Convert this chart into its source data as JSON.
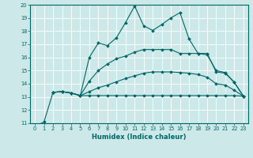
{
  "xlabel": "Humidex (Indice chaleur)",
  "xlim": [
    -0.5,
    23.5
  ],
  "ylim": [
    11,
    20
  ],
  "xticks": [
    0,
    1,
    2,
    3,
    4,
    5,
    6,
    7,
    8,
    9,
    10,
    11,
    12,
    13,
    14,
    15,
    16,
    17,
    18,
    19,
    20,
    21,
    22,
    23
  ],
  "yticks": [
    11,
    12,
    13,
    14,
    15,
    16,
    17,
    18,
    19,
    20
  ],
  "bg_color": "#cce8e8",
  "line_color": "#006666",
  "grid_color": "#ffffff",
  "line1_x": [
    0,
    1,
    2,
    3,
    4,
    5,
    6,
    7,
    8,
    9,
    10,
    11,
    12,
    13,
    14,
    15,
    16,
    17,
    18,
    19,
    20,
    21,
    22,
    23
  ],
  "line1_y": [
    10.75,
    11.1,
    13.35,
    13.4,
    13.3,
    13.1,
    16.0,
    17.1,
    16.9,
    17.5,
    18.65,
    19.9,
    18.4,
    18.05,
    18.5,
    19.0,
    19.4,
    17.4,
    16.3,
    16.3,
    14.9,
    14.8,
    14.1,
    13.05
  ],
  "line2_x": [
    2,
    3,
    4,
    5,
    6,
    7,
    8,
    9,
    10,
    11,
    12,
    13,
    14,
    15,
    16,
    17,
    18,
    19,
    20,
    21,
    22,
    23
  ],
  "line2_y": [
    13.35,
    13.4,
    13.3,
    13.1,
    14.2,
    15.0,
    15.5,
    15.9,
    16.1,
    16.4,
    16.6,
    16.6,
    16.6,
    16.6,
    16.3,
    16.3,
    16.3,
    16.2,
    15.0,
    14.85,
    14.1,
    13.05
  ],
  "line3_x": [
    2,
    3,
    4,
    5,
    6,
    7,
    8,
    9,
    10,
    11,
    12,
    13,
    14,
    15,
    16,
    17,
    18,
    19,
    20,
    21,
    22,
    23
  ],
  "line3_y": [
    13.35,
    13.4,
    13.3,
    13.1,
    13.4,
    13.7,
    13.9,
    14.15,
    14.4,
    14.6,
    14.8,
    14.9,
    14.9,
    14.9,
    14.85,
    14.8,
    14.7,
    14.5,
    14.0,
    13.9,
    13.5,
    13.05
  ],
  "line4_x": [
    2,
    3,
    4,
    5,
    6,
    7,
    8,
    9,
    10,
    11,
    12,
    13,
    14,
    15,
    16,
    17,
    18,
    19,
    20,
    21,
    22,
    23
  ],
  "line4_y": [
    13.35,
    13.4,
    13.3,
    13.1,
    13.1,
    13.1,
    13.1,
    13.1,
    13.1,
    13.1,
    13.1,
    13.1,
    13.1,
    13.1,
    13.1,
    13.1,
    13.1,
    13.1,
    13.1,
    13.1,
    13.1,
    13.05
  ]
}
